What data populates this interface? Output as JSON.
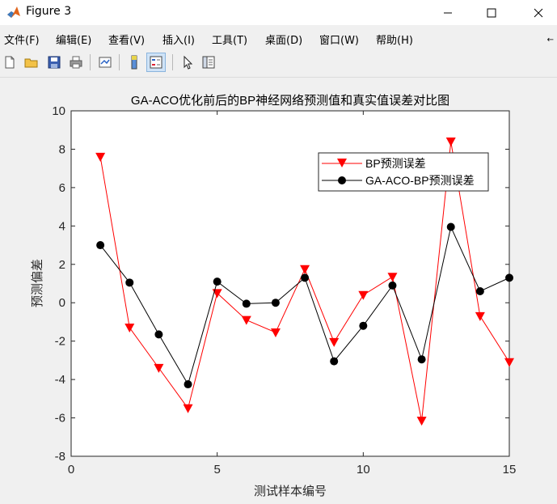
{
  "window": {
    "title": "Figure 3"
  },
  "menu": [
    "文件(F)",
    "编辑(E)",
    "查看(V)",
    "插入(I)",
    "工具(T)",
    "桌面(D)",
    "窗口(W)",
    "帮助(H)"
  ],
  "toolbar": {
    "buttons": [
      "new-figure-icon",
      "open-file-icon",
      "save-icon",
      "print-icon",
      "link-plot-icon",
      "insert-colorbar-icon",
      "insert-legend-icon",
      "pointer-icon",
      "property-editor-icon"
    ]
  },
  "colors": {
    "bp": "#ff0000",
    "ga": "#000000"
  },
  "chart_data": {
    "type": "line",
    "title": "GA-ACO优化前后的BP神经网络预测值和真实值误差对比图",
    "xlabel": "测试样本编号",
    "ylabel": "预测偏差",
    "xlim": [
      0,
      15
    ],
    "ylim": [
      -8,
      10
    ],
    "xticks": [
      0,
      5,
      10,
      15
    ],
    "yticks": [
      -8,
      -6,
      -4,
      -2,
      0,
      2,
      4,
      6,
      8,
      10
    ],
    "grid": false,
    "legend_position": "top-right",
    "x": [
      1,
      2,
      3,
      4,
      5,
      6,
      7,
      8,
      9,
      10,
      11,
      12,
      13,
      14,
      15
    ],
    "series": [
      {
        "name": "BP预测误差",
        "marker": "triangle-down",
        "values": [
          7.6,
          -1.3,
          -3.4,
          -5.5,
          0.5,
          -0.9,
          -1.55,
          1.75,
          -2.05,
          0.4,
          1.35,
          -6.15,
          8.4,
          -0.7,
          -3.1
        ]
      },
      {
        "name": "GA-ACO-BP预测误差",
        "marker": "circle",
        "values": [
          3.0,
          1.05,
          -1.65,
          -4.25,
          1.1,
          -0.05,
          0.0,
          1.3,
          -3.05,
          -1.2,
          0.9,
          -2.95,
          3.95,
          0.6,
          1.3
        ]
      }
    ]
  }
}
